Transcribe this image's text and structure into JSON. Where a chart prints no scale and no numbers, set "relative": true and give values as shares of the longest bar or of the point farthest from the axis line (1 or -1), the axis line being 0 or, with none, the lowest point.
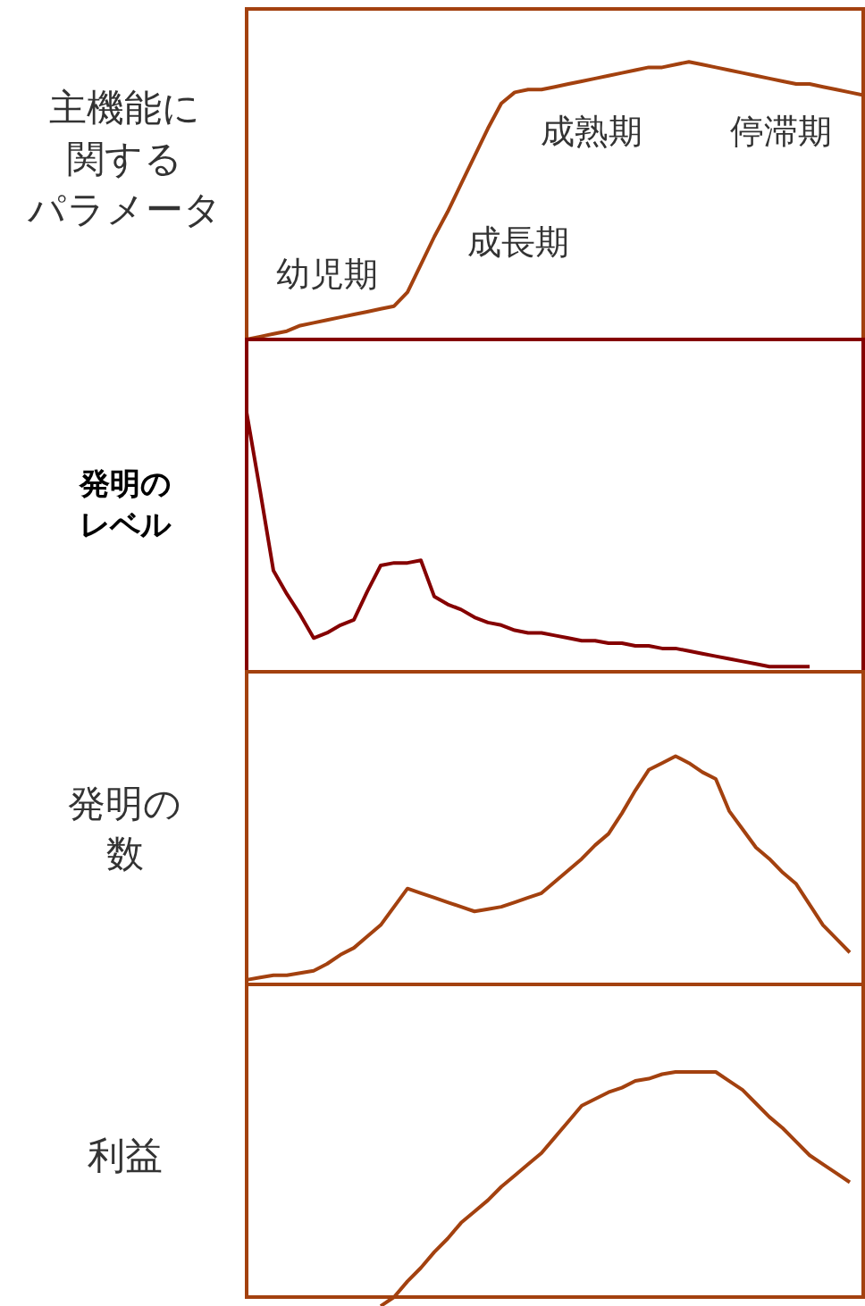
{
  "chart_data": [
    {
      "type": "line",
      "ylabel": "主機能に関するパラメータ",
      "relative": true,
      "categories": [
        null,
        null,
        null,
        null,
        null,
        null,
        null,
        null,
        null,
        null,
        null,
        null,
        null,
        null,
        null,
        null,
        null,
        null,
        null,
        null,
        null,
        null,
        null,
        null,
        null,
        null,
        null,
        null,
        null,
        null,
        null,
        null,
        null,
        null,
        null,
        null,
        null,
        null,
        null,
        null,
        null,
        null,
        null,
        null,
        null,
        null,
        null
      ],
      "values": [
        0,
        0.01,
        0.02,
        0.03,
        0.05,
        0.06,
        0.07,
        0.08,
        0.09,
        0.1,
        0.11,
        0.12,
        0.17,
        0.27,
        0.37,
        0.46,
        0.56,
        0.66,
        0.76,
        0.85,
        0.89,
        0.9,
        0.9,
        0.91,
        0.92,
        0.93,
        0.94,
        0.95,
        0.96,
        0.97,
        0.98,
        0.98,
        0.99,
        1,
        0.99,
        0.98,
        0.97,
        0.96,
        0.95,
        0.94,
        0.93,
        0.92,
        0.92,
        0.91,
        0.9,
        0.89,
        0.88
      ],
      "color": "#a3410f",
      "annotations": [
        "幼児期",
        "成長期",
        "成熟期",
        "停滞期"
      ]
    },
    {
      "type": "line",
      "ylabel": "発明のレベル",
      "relative": true,
      "categories": [
        null,
        null,
        null,
        null,
        null,
        null,
        null,
        null,
        null,
        null,
        null,
        null,
        null,
        null,
        null,
        null,
        null,
        null,
        null,
        null,
        null,
        null,
        null,
        null,
        null,
        null,
        null,
        null,
        null,
        null,
        null,
        null,
        null,
        null,
        null,
        null,
        null,
        null,
        null,
        null,
        null,
        null,
        null,
        null,
        null,
        null,
        null
      ],
      "values": [
        1,
        0.7,
        0.39,
        0.3,
        0.22,
        0.13,
        0.15,
        0.18,
        0.2,
        0.31,
        0.41,
        0.42,
        0.42,
        0.43,
        0.29,
        0.26,
        0.24,
        0.21,
        0.19,
        0.18,
        0.16,
        0.15,
        0.15,
        0.14,
        0.13,
        0.12,
        0.12,
        0.11,
        0.11,
        0.1,
        0.1,
        0.09,
        0.09,
        0.08,
        0.07,
        0.06,
        0.05,
        0.04,
        0.03,
        0.02,
        0.02,
        0.02,
        0.02,
        null,
        null,
        null,
        null
      ],
      "color": "#850000"
    },
    {
      "type": "line",
      "ylabel": "発明の数",
      "relative": true,
      "categories": [
        null,
        null,
        null,
        null,
        null,
        null,
        null,
        null,
        null,
        null,
        null,
        null,
        null,
        null,
        null,
        null,
        null,
        null,
        null,
        null,
        null,
        null,
        null,
        null,
        null,
        null,
        null,
        null,
        null,
        null,
        null,
        null,
        null,
        null,
        null,
        null,
        null,
        null,
        null,
        null,
        null,
        null,
        null,
        null,
        null,
        null,
        null
      ],
      "values": [
        0.02,
        0.03,
        0.04,
        0.04,
        0.05,
        0.06,
        0.09,
        0.13,
        0.16,
        0.21,
        0.26,
        0.34,
        0.42,
        0.4,
        0.38,
        0.36,
        0.34,
        0.32,
        0.33,
        0.34,
        0.36,
        0.38,
        0.4,
        0.45,
        0.5,
        0.55,
        0.61,
        0.66,
        0.75,
        0.85,
        0.94,
        0.97,
        1,
        0.97,
        0.93,
        0.9,
        0.76,
        0.68,
        0.6,
        0.55,
        0.49,
        0.44,
        0.35,
        0.26,
        0.2,
        0.14,
        null
      ],
      "color": "#a3410f"
    },
    {
      "type": "line",
      "ylabel": "利益",
      "relative": true,
      "categories": [
        null,
        null,
        null,
        null,
        null,
        null,
        null,
        null,
        null,
        null,
        null,
        null,
        null,
        null,
        null,
        null,
        null,
        null,
        null,
        null,
        null,
        null,
        null,
        null,
        null,
        null,
        null,
        null,
        null,
        null,
        null,
        null,
        null,
        null,
        null,
        null,
        null,
        null,
        null,
        null,
        null,
        null,
        null,
        null,
        null,
        null,
        null
      ],
      "values": [
        null,
        null,
        null,
        null,
        null,
        null,
        null,
        null,
        null,
        null,
        -0.04,
        0,
        0.07,
        0.13,
        0.2,
        0.26,
        0.33,
        0.38,
        0.43,
        0.49,
        0.54,
        0.59,
        0.64,
        0.71,
        0.78,
        0.85,
        0.88,
        0.91,
        0.93,
        0.96,
        0.97,
        0.99,
        1,
        1,
        1,
        1,
        0.96,
        0.92,
        0.86,
        0.8,
        0.75,
        0.69,
        0.63,
        0.59,
        0.55,
        0.51,
        null
      ],
      "color": "#a3410f"
    }
  ]
}
